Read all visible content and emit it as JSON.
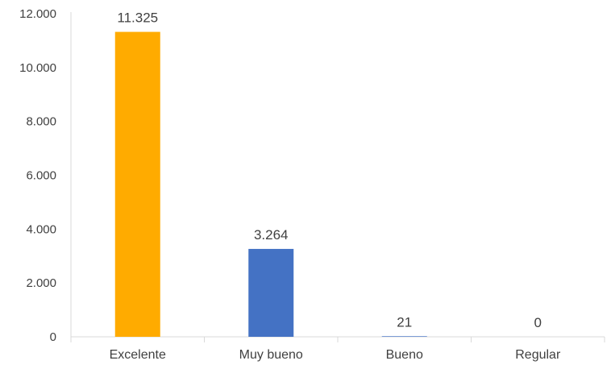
{
  "chart_data": {
    "type": "bar",
    "categories": [
      "Excelente",
      "Muy bueno",
      "Bueno",
      "Regular"
    ],
    "values": [
      11325,
      3264,
      21,
      0
    ],
    "data_labels": [
      "11.325",
      "3.264",
      "21",
      "0"
    ],
    "bar_colors": [
      "#FFAB00",
      "#4472C4",
      "#4472C4",
      "#4472C4"
    ],
    "title": "",
    "xlabel": "",
    "ylabel": "",
    "ylim": [
      0,
      12000
    ],
    "y_ticks": [
      0,
      2000,
      4000,
      6000,
      8000,
      10000,
      12000
    ],
    "y_tick_labels": [
      "0",
      "2.000",
      "4.000",
      "6.000",
      "8.000",
      "10.000",
      "12.000"
    ],
    "grid": false,
    "legend": "none"
  }
}
